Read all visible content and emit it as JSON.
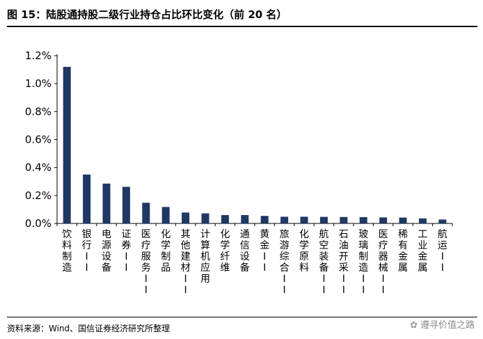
{
  "figure": {
    "title": "图 15：陆股通持股二级行业持仓占比环比变化（前 20 名）",
    "source": "资料来源：Wind、国信证券经济研究所整理",
    "watermark": "遵寻价值之路",
    "watermark_icon": "wechat-icon"
  },
  "chart_data": {
    "type": "bar",
    "categories": [
      "饮料制造",
      "银行II",
      "电源设备",
      "证券II",
      "医疗服务II",
      "化学制品",
      "其他建材II",
      "计算机应用",
      "化学纤维",
      "通信设备",
      "黄金II",
      "旅游综合II",
      "化学原料",
      "航空装备II",
      "石油开采II",
      "玻璃制造II",
      "医疗器械II",
      "稀有金属",
      "工业金属",
      "航运II"
    ],
    "values": [
      1.12,
      0.35,
      0.285,
      0.262,
      0.148,
      0.118,
      0.078,
      0.072,
      0.06,
      0.06,
      0.054,
      0.048,
      0.048,
      0.047,
      0.046,
      0.045,
      0.043,
      0.042,
      0.036,
      0.028
    ],
    "yticks": [
      "0.0%",
      "0.2%",
      "0.4%",
      "0.6%",
      "0.8%",
      "1.0%",
      "1.2%"
    ],
    "ylim": [
      0,
      1.2
    ],
    "unit": "%",
    "bar_color": "#1f3864",
    "grid": false,
    "legend": "none"
  }
}
